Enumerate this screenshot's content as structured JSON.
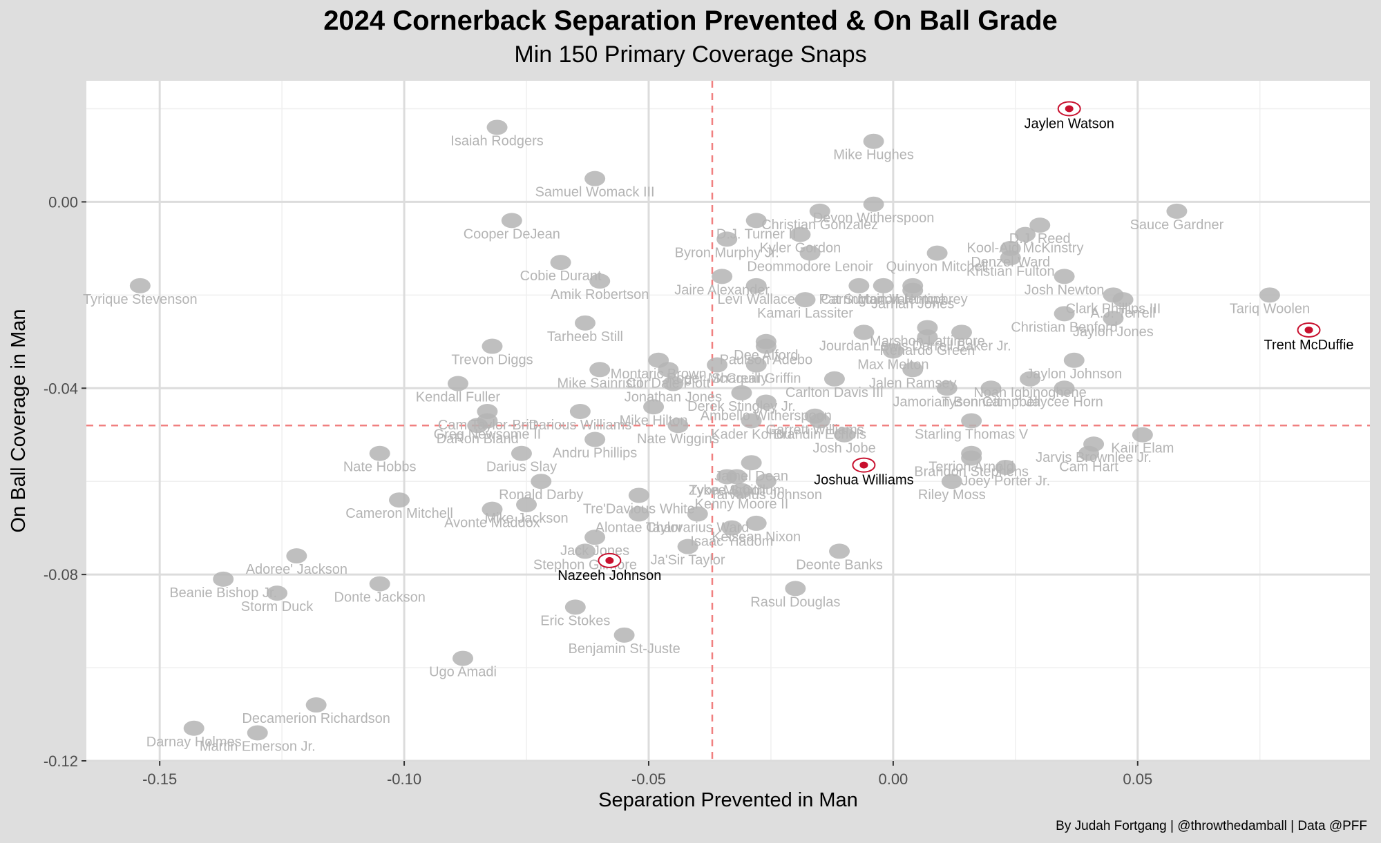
{
  "chart_data": {
    "type": "scatter",
    "title": "2024 Cornerback Separation Prevented & On Ball Grade",
    "subtitle": "Min 150 Primary Coverage Snaps",
    "xlabel": "Separation Prevented in Man",
    "ylabel": "On Ball Coverage in Man",
    "xlim": [
      -0.165,
      0.0975
    ],
    "ylim": [
      -0.12,
      0.026
    ],
    "x_ticks": [
      -0.15,
      -0.1,
      -0.05,
      0.0,
      0.05
    ],
    "x_tick_labels": [
      "-0.15",
      "-0.10",
      "-0.05",
      "0.00",
      "0.05"
    ],
    "y_ticks": [
      0.0,
      -0.04,
      -0.08,
      -0.12
    ],
    "y_tick_labels": [
      "0.00",
      "-0.04",
      "-0.08",
      "-0.12"
    ],
    "x_grid_minor": [
      -0.125,
      -0.075,
      -0.025,
      0.025,
      0.075
    ],
    "y_grid_minor": [
      0.02,
      -0.02,
      -0.06,
      -0.1
    ],
    "grid": true,
    "ref_lines": {
      "x": -0.037,
      "y": -0.048,
      "color": "#f08080"
    },
    "highlight_color": "#000000",
    "muted_color": "#b4b4b4",
    "highlight_team": "Kansas City Chiefs",
    "points": [
      {
        "name": "Jaylen Watson",
        "x": 0.036,
        "y": 0.02,
        "highlight": true
      },
      {
        "name": "Trent McDuffie",
        "x": 0.085,
        "y": -0.0275,
        "highlight": true
      },
      {
        "name": "Joshua Williams",
        "x": -0.006,
        "y": -0.0565,
        "highlight": true
      },
      {
        "name": "Nazeeh Johnson",
        "x": -0.058,
        "y": -0.077,
        "highlight": true
      },
      {
        "name": "Isaiah Rodgers",
        "x": -0.081,
        "y": 0.016
      },
      {
        "name": "Mike Hughes",
        "x": -0.004,
        "y": 0.013
      },
      {
        "name": "Samuel Womack III",
        "x": -0.061,
        "y": 0.005
      },
      {
        "name": "Christian Gonzalez",
        "x": -0.015,
        "y": -0.002
      },
      {
        "name": "Devon Witherspoon",
        "x": -0.004,
        "y": -0.0005
      },
      {
        "name": "D.J. Turner II",
        "x": -0.028,
        "y": -0.004
      },
      {
        "name": "Sauce Gardner",
        "x": 0.058,
        "y": -0.002
      },
      {
        "name": "Cooper DeJean",
        "x": -0.078,
        "y": -0.004
      },
      {
        "name": "Kool-Aid McKinstry",
        "x": 0.027,
        "y": -0.007
      },
      {
        "name": "D.J. Reed",
        "x": 0.03,
        "y": -0.005
      },
      {
        "name": "Quinyon Mitchell",
        "x": 0.009,
        "y": -0.011
      },
      {
        "name": "Byron Murphy Jr.",
        "x": -0.034,
        "y": -0.008
      },
      {
        "name": "Kyler Gordon",
        "x": -0.019,
        "y": -0.007
      },
      {
        "name": "Denzel Ward",
        "x": 0.024,
        "y": -0.01
      },
      {
        "name": "Kristian Fulton",
        "x": 0.024,
        "y": -0.012
      },
      {
        "name": "Cobie Durant",
        "x": -0.068,
        "y": -0.013
      },
      {
        "name": "Jaire Alexander",
        "x": -0.035,
        "y": -0.016
      },
      {
        "name": "Deommodore Lenoir",
        "x": -0.017,
        "y": -0.011
      },
      {
        "name": "Marlon Humphrey",
        "x": 0.004,
        "y": -0.018
      },
      {
        "name": "Josh Newton",
        "x": 0.035,
        "y": -0.016
      },
      {
        "name": "Clark Phillips III",
        "x": 0.045,
        "y": -0.02
      },
      {
        "name": "Tariq Woolen",
        "x": 0.077,
        "y": -0.02
      },
      {
        "name": "Amik Robertson",
        "x": -0.06,
        "y": -0.017
      },
      {
        "name": "Pat Surtain II",
        "x": -0.007,
        "y": -0.018
      },
      {
        "name": "Jarrian Jones",
        "x": 0.004,
        "y": -0.019
      },
      {
        "name": "Carrington Valentine",
        "x": -0.002,
        "y": -0.018
      },
      {
        "name": "A.J. Terrell",
        "x": 0.047,
        "y": -0.021
      },
      {
        "name": "Tyrique Stevenson",
        "x": -0.154,
        "y": -0.018
      },
      {
        "name": "Levi Wallace",
        "x": -0.028,
        "y": -0.018
      },
      {
        "name": "Kamari Lassiter",
        "x": -0.018,
        "y": -0.021
      },
      {
        "name": "Christian Benford",
        "x": 0.035,
        "y": -0.024
      },
      {
        "name": "Jaylon Jones",
        "x": 0.045,
        "y": -0.025
      },
      {
        "name": "Marshon Lattimore",
        "x": 0.007,
        "y": -0.027
      },
      {
        "name": "Darrell Baker Jr.",
        "x": 0.014,
        "y": -0.028
      },
      {
        "name": "Tarheeb Still",
        "x": -0.063,
        "y": -0.026
      },
      {
        "name": "Paulson Adebo",
        "x": -0.026,
        "y": -0.031
      },
      {
        "name": "Renardo Green",
        "x": 0.007,
        "y": -0.029
      },
      {
        "name": "Trevon Diggs",
        "x": -0.082,
        "y": -0.031
      },
      {
        "name": "Montaric Brown",
        "x": -0.048,
        "y": -0.034
      },
      {
        "name": "Shaquill Griffin",
        "x": -0.028,
        "y": -0.035
      },
      {
        "name": "Dee Alford",
        "x": -0.026,
        "y": -0.03
      },
      {
        "name": "Max Melton",
        "x": 0.0,
        "y": -0.032
      },
      {
        "name": "Jourdan Lewis",
        "x": -0.006,
        "y": -0.028
      },
      {
        "name": "Jaylon Johnson",
        "x": 0.037,
        "y": -0.034
      },
      {
        "name": "Kendall Fuller",
        "x": -0.089,
        "y": -0.039
      },
      {
        "name": "Mike Sainristil",
        "x": -0.06,
        "y": -0.036
      },
      {
        "name": "Cor'Dale Flott",
        "x": -0.046,
        "y": -0.036
      },
      {
        "name": "Roger McCreary",
        "x": -0.036,
        "y": -0.035
      },
      {
        "name": "Carlton Davis III",
        "x": -0.012,
        "y": -0.038
      },
      {
        "name": "Jalen Ramsey",
        "x": 0.004,
        "y": -0.036
      },
      {
        "name": "Noah Igbinoghene",
        "x": 0.028,
        "y": -0.038
      },
      {
        "name": "Cam Taylor-Britt",
        "x": -0.083,
        "y": -0.045
      },
      {
        "name": "Jonathan Jones",
        "x": -0.045,
        "y": -0.039
      },
      {
        "name": "Derek Stingley Jr.",
        "x": -0.031,
        "y": -0.041
      },
      {
        "name": "Ambello Witherspoon",
        "x": -0.026,
        "y": -0.043
      },
      {
        "name": "Garrett Williams",
        "x": -0.016,
        "y": -0.046
      },
      {
        "name": "Tyson Campbell",
        "x": 0.02,
        "y": -0.04
      },
      {
        "name": "Jaycee Horn",
        "x": 0.035,
        "y": -0.04
      },
      {
        "name": "Jamorian Bennett",
        "x": 0.011,
        "y": -0.04
      },
      {
        "name": "Greg Newsome II",
        "x": -0.083,
        "y": -0.047
      },
      {
        "name": "Darious Williams",
        "x": -0.064,
        "y": -0.045
      },
      {
        "name": "Mike Hilton",
        "x": -0.049,
        "y": -0.044
      },
      {
        "name": "Kader Kohou",
        "x": -0.029,
        "y": -0.047
      },
      {
        "name": "Brandin Echols",
        "x": -0.015,
        "y": -0.047
      },
      {
        "name": "Starling Thomas V",
        "x": 0.016,
        "y": -0.047
      },
      {
        "name": "Jarvis Brownlee Jr.",
        "x": 0.041,
        "y": -0.052
      },
      {
        "name": "DaRon Bland",
        "x": -0.085,
        "y": -0.048
      },
      {
        "name": "Darius Slay",
        "x": -0.076,
        "y": -0.054
      },
      {
        "name": "Nate Wiggins",
        "x": -0.044,
        "y": -0.048
      },
      {
        "name": "Josh Jobe",
        "x": -0.01,
        "y": -0.05
      },
      {
        "name": "Terrion Arnold",
        "x": 0.016,
        "y": -0.054
      },
      {
        "name": "Brandon Stephens",
        "x": 0.016,
        "y": -0.055
      },
      {
        "name": "Kaiir Elam",
        "x": 0.051,
        "y": -0.05
      },
      {
        "name": "Nate Hobbs",
        "x": -0.105,
        "y": -0.054
      },
      {
        "name": "Ronald Darby",
        "x": -0.072,
        "y": -0.06
      },
      {
        "name": "Andru Phillips",
        "x": -0.061,
        "y": -0.051
      },
      {
        "name": "Zyon McCollum",
        "x": -0.032,
        "y": -0.059
      },
      {
        "name": "Jamel Dean",
        "x": -0.029,
        "y": -0.056
      },
      {
        "name": "Tarvarius Johnson",
        "x": -0.026,
        "y": -0.06
      },
      {
        "name": "Cam Hart",
        "x": 0.04,
        "y": -0.054
      },
      {
        "name": "Joey Porter Jr.",
        "x": 0.023,
        "y": -0.057
      },
      {
        "name": "Riley Moss",
        "x": 0.012,
        "y": -0.06
      },
      {
        "name": "Cameron Mitchell",
        "x": -0.101,
        "y": -0.064
      },
      {
        "name": "Mike Jackson",
        "x": -0.075,
        "y": -0.065
      },
      {
        "name": "Tre'Davious White",
        "x": -0.052,
        "y": -0.063
      },
      {
        "name": "Tykee Smith",
        "x": -0.034,
        "y": -0.059
      },
      {
        "name": "Kenny Moore II",
        "x": -0.031,
        "y": -0.062
      },
      {
        "name": "Avonte Maddox",
        "x": -0.082,
        "y": -0.066
      },
      {
        "name": "Alontae Taylor",
        "x": -0.052,
        "y": -0.067
      },
      {
        "name": "Keisean Nixon",
        "x": -0.028,
        "y": -0.069
      },
      {
        "name": "Jack Jones",
        "x": -0.061,
        "y": -0.072
      },
      {
        "name": "Charvarius Ward",
        "x": -0.04,
        "y": -0.067
      },
      {
        "name": "Isaac Yiadom",
        "x": -0.033,
        "y": -0.07
      },
      {
        "name": "Adoree' Jackson",
        "x": -0.122,
        "y": -0.076
      },
      {
        "name": "Deonte Banks",
        "x": -0.011,
        "y": -0.075
      },
      {
        "name": "Stephon Gilmore",
        "x": -0.063,
        "y": -0.075
      },
      {
        "name": "Ja'Sir Taylor",
        "x": -0.042,
        "y": -0.074
      },
      {
        "name": "Beanie Bishop Jr.",
        "x": -0.137,
        "y": -0.081
      },
      {
        "name": "Donte Jackson",
        "x": -0.105,
        "y": -0.082
      },
      {
        "name": "Rasul Douglas",
        "x": -0.02,
        "y": -0.083
      },
      {
        "name": "Storm Duck",
        "x": -0.126,
        "y": -0.084
      },
      {
        "name": "Eric Stokes",
        "x": -0.065,
        "y": -0.087
      },
      {
        "name": "Benjamin St-Juste",
        "x": -0.055,
        "y": -0.093
      },
      {
        "name": "Ugo Amadi",
        "x": -0.088,
        "y": -0.098
      },
      {
        "name": "Decamerion Richardson",
        "x": -0.118,
        "y": -0.108
      },
      {
        "name": "Darnay Holmes",
        "x": -0.143,
        "y": -0.113
      },
      {
        "name": "Martin Emerson Jr.",
        "x": -0.13,
        "y": -0.114
      }
    ]
  },
  "caption": "By Judah Fortgang | @throwthedamball | Data @PFF"
}
